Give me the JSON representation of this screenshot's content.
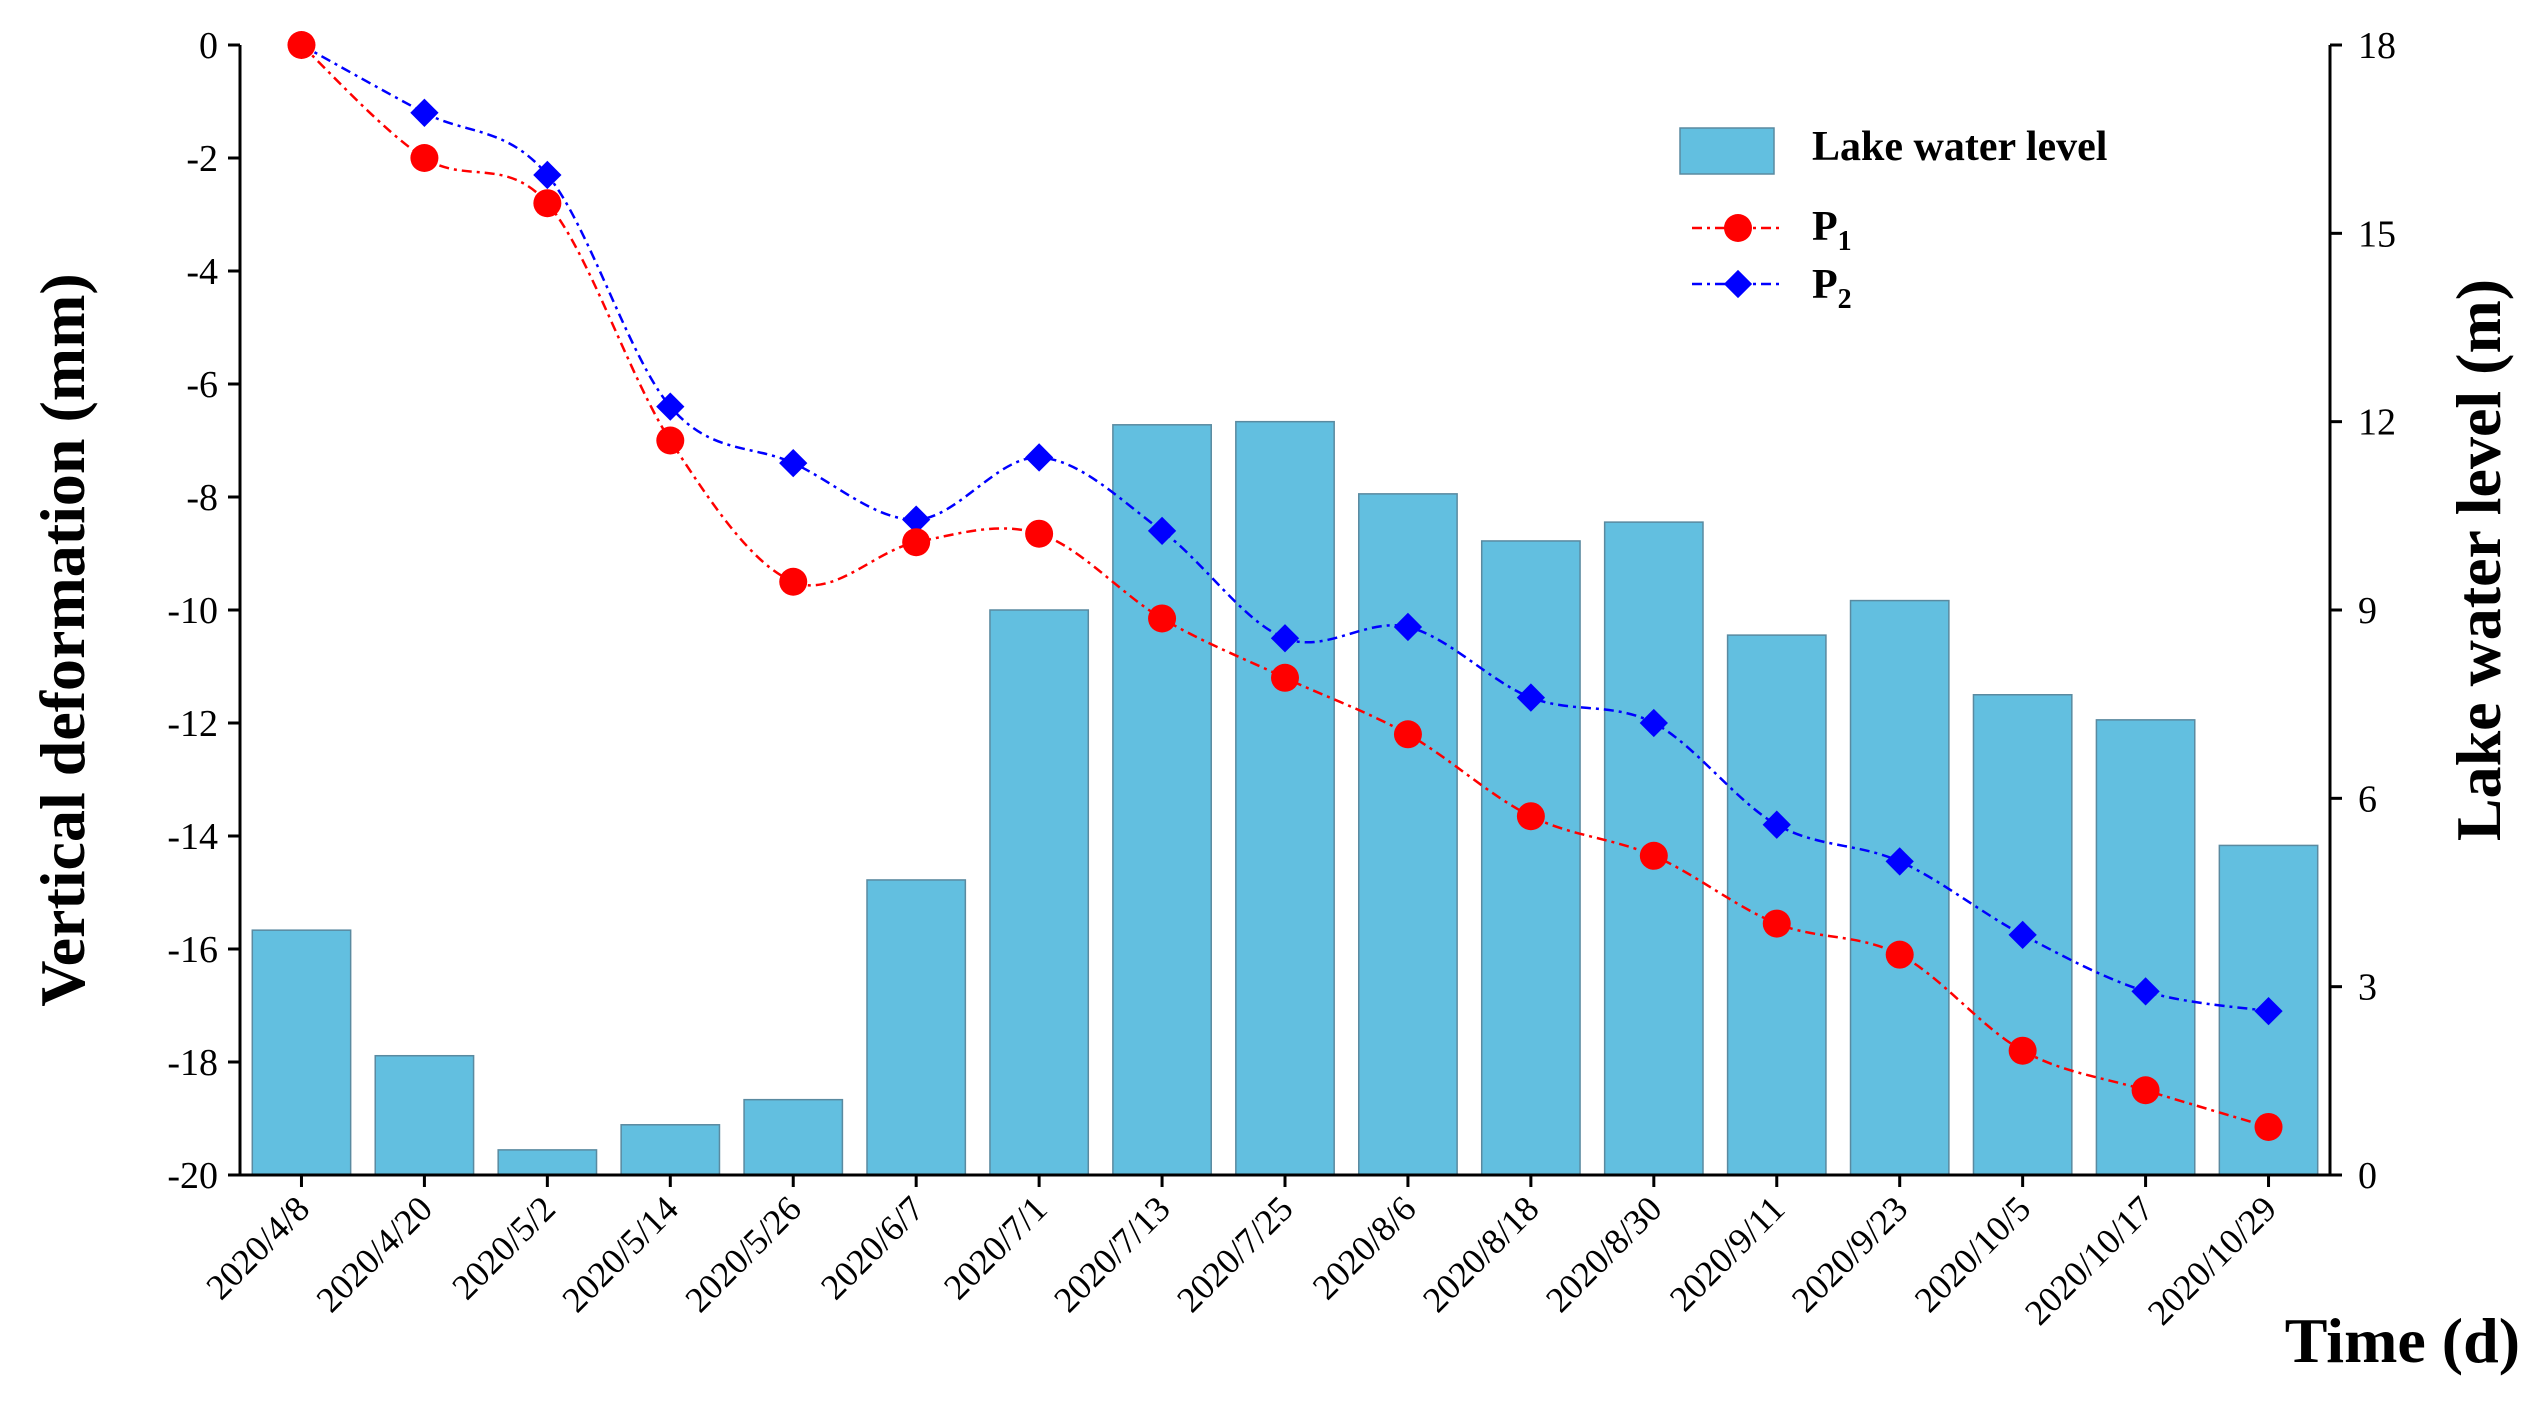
{
  "chart_data": {
    "type": "bar+line",
    "categories": [
      "2020/4/8",
      "2020/4/20",
      "2020/5/2",
      "2020/5/14",
      "2020/5/26",
      "2020/6/7",
      "2020/7/1",
      "2020/7/13",
      "2020/7/25",
      "2020/8/6",
      "2020/8/18",
      "2020/8/30",
      "2020/9/11",
      "2020/9/23",
      "2020/10/5",
      "2020/10/17",
      "2020/10/29"
    ],
    "bar_series": {
      "name": "Lake water level",
      "axis": "right",
      "values": [
        3.9,
        1.9,
        0.4,
        0.8,
        1.2,
        4.7,
        9.0,
        11.95,
        12.0,
        10.85,
        10.1,
        10.4,
        8.6,
        9.15,
        7.65,
        7.25,
        5.25
      ],
      "color": "#62bfe0"
    },
    "line_series": [
      {
        "name": "P",
        "subscript": "1",
        "axis": "left",
        "marker": "circle",
        "color": "#ff0000",
        "values": [
          0,
          -2.0,
          -2.8,
          -7.0,
          -9.5,
          -8.8,
          -8.65,
          -10.15,
          -11.2,
          -12.2,
          -13.65,
          -14.35,
          -15.55,
          -16.1,
          -17.8,
          -18.5,
          -19.15
        ]
      },
      {
        "name": "P",
        "subscript": "2",
        "axis": "left",
        "marker": "diamond",
        "color": "#0000ff",
        "values": [
          0,
          -1.2,
          -2.3,
          -6.4,
          -7.4,
          -8.4,
          -7.3,
          -8.6,
          -10.5,
          -10.3,
          -11.55,
          -12.0,
          -13.8,
          -14.45,
          -15.75,
          -16.75,
          -17.1
        ]
      }
    ],
    "ylabel": "Vertical deformation (mm)",
    "ylabel_right": "Lake water level  (m)",
    "xlabel": "Time (d)",
    "ylim": [
      -20,
      0
    ],
    "yticks": [
      "0",
      "-2",
      "-4",
      "-6",
      "-8",
      "-10",
      "-12",
      "-14",
      "-16",
      "-18",
      "-20"
    ],
    "ylim_right": [
      0,
      18
    ],
    "yticks_right": [
      "0",
      "3",
      "6",
      "9",
      "12",
      "15",
      "18"
    ],
    "legend": {
      "placement": "top-right",
      "bar_label": "Lake water level"
    }
  }
}
